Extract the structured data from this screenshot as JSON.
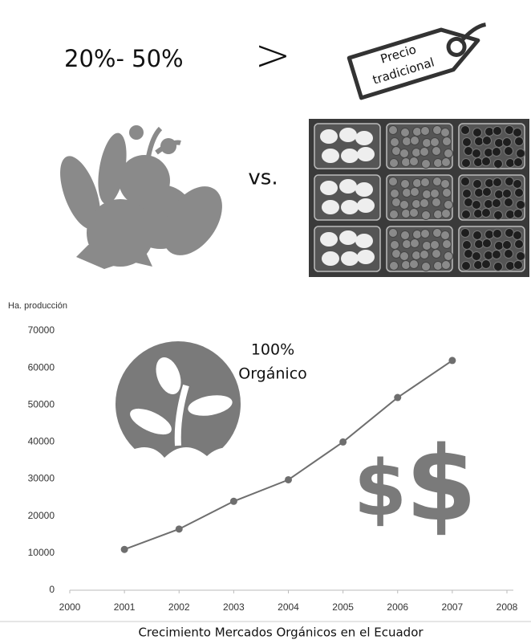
{
  "infographic": {
    "percent": "20%- 50%",
    "compare": ">",
    "tag": [
      "Precio",
      "tradicional"
    ],
    "vs": "vs.",
    "badge": [
      "100%",
      "Orgánico"
    ],
    "symbols": [
      "$",
      "$"
    ]
  },
  "chart_data": {
    "type": "line",
    "title": "Crecimiento Mercados Orgánicos en el Ecuador",
    "y_label": "Ha. producción",
    "x": [
      2001,
      2002,
      2003,
      2004,
      2005,
      2006,
      2007
    ],
    "series": [
      {
        "name": "Ha. producción",
        "color": "#6e6e6e",
        "values": [
          11000,
          16500,
          24000,
          29800,
          40000,
          52000,
          62000
        ]
      }
    ],
    "xlim": [
      2000,
      2008
    ],
    "xticks": [
      2000,
      2001,
      2002,
      2003,
      2004,
      2005,
      2006,
      2007,
      2008
    ],
    "ylim": [
      0,
      70000
    ],
    "yticks": [
      0,
      10000,
      20000,
      30000,
      40000,
      50000,
      60000,
      70000
    ],
    "grid": false
  }
}
